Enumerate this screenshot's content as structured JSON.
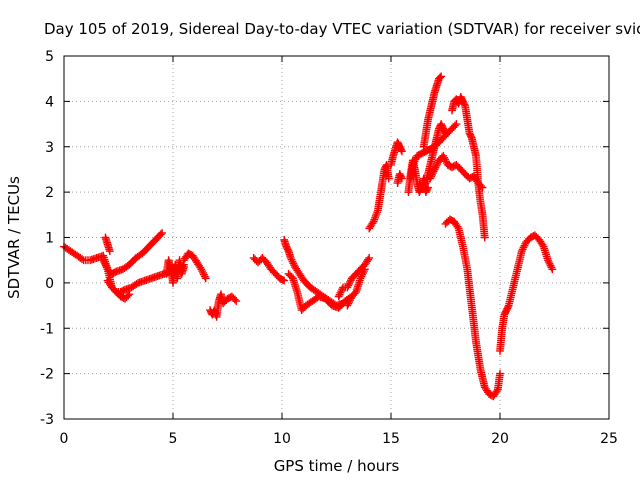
{
  "chart_data": {
    "type": "scatter",
    "title": "Day 105 of 2019, Sidereal Day-to-day VTEC variation (SDTVAR) for receiver svic",
    "xlabel": "GPS time / hours",
    "ylabel": "SDTVAR / TECUs",
    "xlim": [
      0,
      25
    ],
    "ylim": [
      -3,
      5
    ],
    "x_ticks": [
      0,
      5,
      10,
      15,
      20,
      25
    ],
    "y_ticks": [
      -3,
      -2,
      -1,
      0,
      1,
      2,
      3,
      4,
      5
    ],
    "x_tick_labels": [
      "0",
      "5",
      "10",
      "15",
      "20",
      "25"
    ],
    "y_tick_labels": [
      "-3",
      "-2",
      "-1",
      "0",
      "1",
      "2",
      "3",
      "4",
      "5"
    ],
    "grid": true,
    "marker": "+",
    "series": [
      {
        "name": "SDTVAR",
        "color": "#ff0000",
        "segments": [
          {
            "x": [
              0.0,
              0.3,
              0.6,
              0.9,
              1.2,
              1.5,
              1.8,
              2.0,
              2.2,
              2.4,
              2.6,
              2.8,
              3.0
            ],
            "y": [
              0.8,
              0.7,
              0.6,
              0.5,
              0.5,
              0.55,
              0.6,
              0.3,
              -0.1,
              -0.2,
              -0.3,
              -0.35,
              -0.25
            ]
          },
          {
            "x": [
              1.8,
              2.0,
              2.2,
              2.4,
              2.7,
              3.0,
              3.3,
              3.6,
              3.9,
              4.2,
              4.5
            ],
            "y": [
              0.5,
              0.3,
              0.2,
              0.25,
              0.3,
              0.4,
              0.55,
              0.65,
              0.8,
              0.95,
              1.1
            ]
          },
          {
            "x": [
              2.0,
              2.2,
              2.4,
              2.6,
              2.8,
              3.1,
              3.4,
              3.7,
              4.0,
              4.3,
              4.6,
              4.9,
              5.2,
              5.5
            ],
            "y": [
              0.05,
              -0.1,
              -0.2,
              -0.2,
              -0.15,
              -0.1,
              0.0,
              0.05,
              0.1,
              0.15,
              0.2,
              0.25,
              0.3,
              0.4
            ]
          },
          {
            "x": [
              1.9,
              2.0,
              2.1
            ],
            "y": [
              1.0,
              0.85,
              0.7
            ]
          },
          {
            "x": [
              4.7,
              4.8,
              4.9,
              5.0,
              5.1,
              5.2,
              5.3,
              5.4,
              5.5
            ],
            "y": [
              0.2,
              0.5,
              0.3,
              0.0,
              0.4,
              0.1,
              0.5,
              0.2,
              0.35
            ]
          },
          {
            "x": [
              5.5,
              5.7,
              5.9,
              6.1,
              6.3,
              6.5
            ],
            "y": [
              0.5,
              0.65,
              0.6,
              0.45,
              0.3,
              0.1
            ]
          },
          {
            "x": [
              6.7,
              6.8,
              6.9,
              7.0,
              7.1,
              7.2,
              7.3,
              7.5,
              7.7,
              7.9
            ],
            "y": [
              -0.6,
              -0.7,
              -0.6,
              -0.75,
              -0.4,
              -0.25,
              -0.45,
              -0.35,
              -0.3,
              -0.4
            ]
          },
          {
            "x": [
              8.7,
              8.9,
              9.1,
              9.3,
              9.5,
              9.7,
              9.9,
              10.1
            ],
            "y": [
              0.55,
              0.45,
              0.55,
              0.45,
              0.3,
              0.2,
              0.1,
              0.05
            ]
          },
          {
            "x": [
              10.1,
              10.2,
              10.3,
              10.4,
              10.6,
              10.8,
              11.0,
              11.3,
              11.6,
              11.9,
              12.2,
              12.5,
              12.8
            ],
            "y": [
              0.95,
              0.8,
              0.7,
              0.55,
              0.35,
              0.2,
              0.05,
              -0.1,
              -0.2,
              -0.3,
              -0.4,
              -0.5,
              -0.45
            ]
          },
          {
            "x": [
              10.3,
              10.5,
              10.7,
              10.9,
              11.1,
              11.4,
              11.7,
              12.0,
              12.3,
              12.6,
              12.9,
              13.2
            ],
            "y": [
              0.2,
              0.1,
              -0.2,
              -0.6,
              -0.5,
              -0.4,
              -0.3,
              -0.35,
              -0.5,
              -0.55,
              -0.4,
              -0.3
            ]
          },
          {
            "x": [
              12.6,
              12.8,
              13.0,
              13.2,
              13.4,
              13.6,
              13.8,
              14.0
            ],
            "y": [
              -0.3,
              -0.1,
              -0.1,
              0.1,
              0.2,
              0.3,
              0.4,
              0.55
            ]
          },
          {
            "x": [
              13.0,
              13.2,
              13.4,
              13.6,
              13.8
            ],
            "y": [
              -0.5,
              -0.3,
              -0.2,
              0.1,
              0.3
            ]
          },
          {
            "x": [
              14.0,
              14.2,
              14.4,
              14.5,
              14.6,
              14.7,
              14.8,
              14.9
            ],
            "y": [
              1.2,
              1.35,
              1.6,
              1.9,
              2.2,
              2.5,
              2.6,
              2.3
            ]
          },
          {
            "x": [
              15.0,
              15.1,
              15.2,
              15.3,
              15.4,
              15.5
            ],
            "y": [
              2.6,
              2.8,
              2.95,
              3.1,
              3.0,
              2.9
            ]
          },
          {
            "x": [
              15.3,
              15.4,
              15.5
            ],
            "y": [
              2.2,
              2.4,
              2.3
            ]
          },
          {
            "x": [
              15.8,
              15.9,
              16.0,
              16.1,
              16.2,
              16.3,
              16.4,
              16.5,
              16.6,
              16.7
            ],
            "y": [
              2.0,
              2.4,
              2.7,
              2.5,
              2.2,
              2.0,
              2.1,
              2.3,
              2.0,
              2.1
            ]
          },
          {
            "x": [
              15.9,
              16.0,
              16.2,
              16.4,
              16.6,
              16.8,
              17.0,
              17.2,
              17.4,
              17.6,
              17.8,
              18.0
            ],
            "y": [
              2.3,
              2.6,
              2.8,
              2.85,
              2.9,
              2.95,
              3.0,
              3.1,
              3.2,
              3.3,
              3.4,
              3.5
            ]
          },
          {
            "x": [
              16.5,
              16.6,
              16.7,
              16.8,
              16.9,
              17.0,
              17.1,
              17.2,
              17.3
            ],
            "y": [
              3.0,
              3.3,
              3.6,
              3.8,
              4.0,
              4.2,
              4.35,
              4.5,
              4.55
            ]
          },
          {
            "x": [
              16.6,
              16.7,
              16.8,
              16.9,
              17.0,
              17.1,
              17.2,
              17.3,
              17.4,
              17.5
            ],
            "y": [
              2.2,
              2.4,
              2.6,
              2.8,
              3.0,
              3.2,
              3.4,
              3.5,
              3.4,
              3.3
            ]
          },
          {
            "x": [
              16.8,
              17.0,
              17.2,
              17.4,
              17.6,
              17.8,
              18.0,
              18.2,
              18.4,
              18.6,
              18.8,
              19.0,
              19.2
            ],
            "y": [
              2.3,
              2.5,
              2.7,
              2.8,
              2.6,
              2.55,
              2.6,
              2.5,
              2.4,
              2.3,
              2.35,
              2.2,
              2.1
            ]
          },
          {
            "x": [
              17.8,
              17.9,
              18.0,
              18.1,
              18.2,
              18.3,
              18.4,
              18.5,
              18.6,
              18.7,
              18.8,
              18.9,
              19.0,
              19.1,
              19.2,
              19.3
            ],
            "y": [
              3.8,
              4.0,
              4.05,
              3.95,
              4.1,
              4.0,
              3.9,
              3.6,
              3.3,
              3.2,
              3.0,
              2.8,
              2.2,
              1.8,
              1.5,
              1.0
            ]
          },
          {
            "x": [
              17.5,
              17.7,
              17.9,
              18.1,
              18.3,
              18.5,
              18.6,
              18.7,
              18.8,
              18.9,
              19.0,
              19.1,
              19.2,
              19.3,
              19.5,
              19.7,
              19.9,
              20.0
            ],
            "y": [
              1.3,
              1.4,
              1.35,
              1.2,
              0.8,
              0.3,
              -0.1,
              -0.5,
              -0.9,
              -1.3,
              -1.6,
              -1.9,
              -2.1,
              -2.3,
              -2.45,
              -2.5,
              -2.35,
              -2.0
            ]
          },
          {
            "x": [
              20.0,
              20.1,
              20.2,
              20.3,
              20.4,
              20.6,
              20.8,
              21.0,
              21.2,
              21.4,
              21.6,
              21.8,
              22.0,
              22.2,
              22.4
            ],
            "y": [
              -1.5,
              -1.0,
              -0.7,
              -0.6,
              -0.5,
              -0.1,
              0.3,
              0.7,
              0.9,
              1.0,
              1.05,
              0.95,
              0.8,
              0.5,
              0.3
            ]
          }
        ]
      }
    ]
  }
}
